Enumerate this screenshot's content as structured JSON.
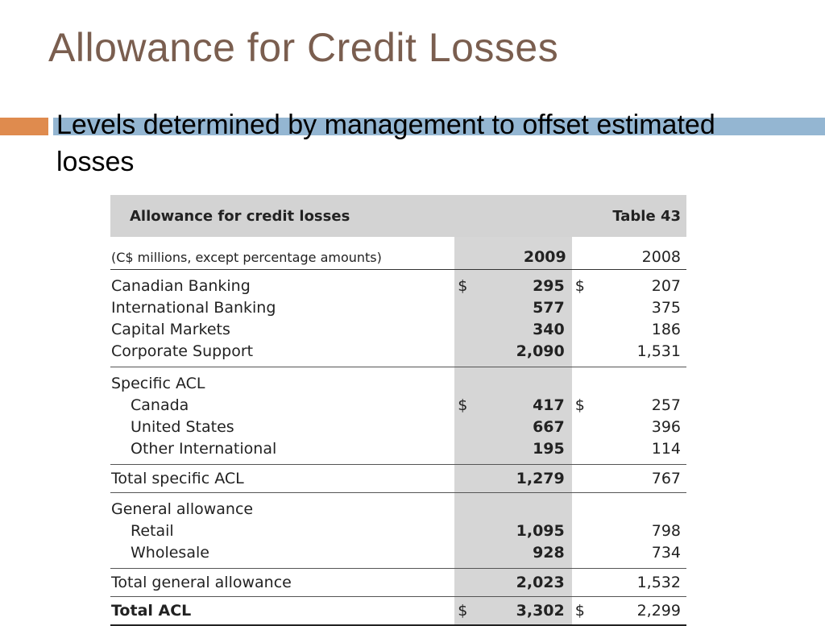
{
  "slide": {
    "title": "Allowance for Credit Losses",
    "bullet": "Levels determined by management to offset estimated losses"
  },
  "table": {
    "title": "Allowance for credit losses",
    "number": "Table 43",
    "units": "(C$ millions, except percentage amounts)",
    "year_2009": "2009",
    "year_2008": "2008",
    "currency": "$",
    "sections": [
      {
        "rows": [
          {
            "label": "Canadian Banking",
            "v2009": "295",
            "v2008": "207",
            "dollar": true
          },
          {
            "label": "International Banking",
            "v2009": "577",
            "v2008": "375"
          },
          {
            "label": "Capital Markets",
            "v2009": "340",
            "v2008": "186"
          },
          {
            "label": "Corporate Support",
            "v2009": "2,090",
            "v2008": "1,531"
          }
        ]
      },
      {
        "heading": "Specific ACL",
        "rows": [
          {
            "label": "Canada",
            "v2009": "417",
            "v2008": "257",
            "dollar": true
          },
          {
            "label": "United States",
            "v2009": "667",
            "v2008": "396"
          },
          {
            "label": "Other International",
            "v2009": "195",
            "v2008": "114"
          }
        ]
      }
    ],
    "total_specific": {
      "label": "Total specific ACL",
      "v2009": "1,279",
      "v2008": "767"
    },
    "general": {
      "heading": "General allowance",
      "rows": [
        {
          "label": "Retail",
          "v2009": "1,095",
          "v2008": "798"
        },
        {
          "label": "Wholesale",
          "v2009": "928",
          "v2008": "734"
        }
      ]
    },
    "total_general": {
      "label": "Total general allowance",
      "v2009": "2,023",
      "v2008": "1,532"
    },
    "total_acl": {
      "label": "Total ACL",
      "v2009": "3,302",
      "v2008": "2,299"
    }
  },
  "colors": {
    "title": "#7a5e4f",
    "accent_orange": "#df8b4e",
    "accent_blue": "#94b6d2",
    "table_header_bg": "#d3d3d3",
    "highlight_column": "#d6d6d6"
  }
}
